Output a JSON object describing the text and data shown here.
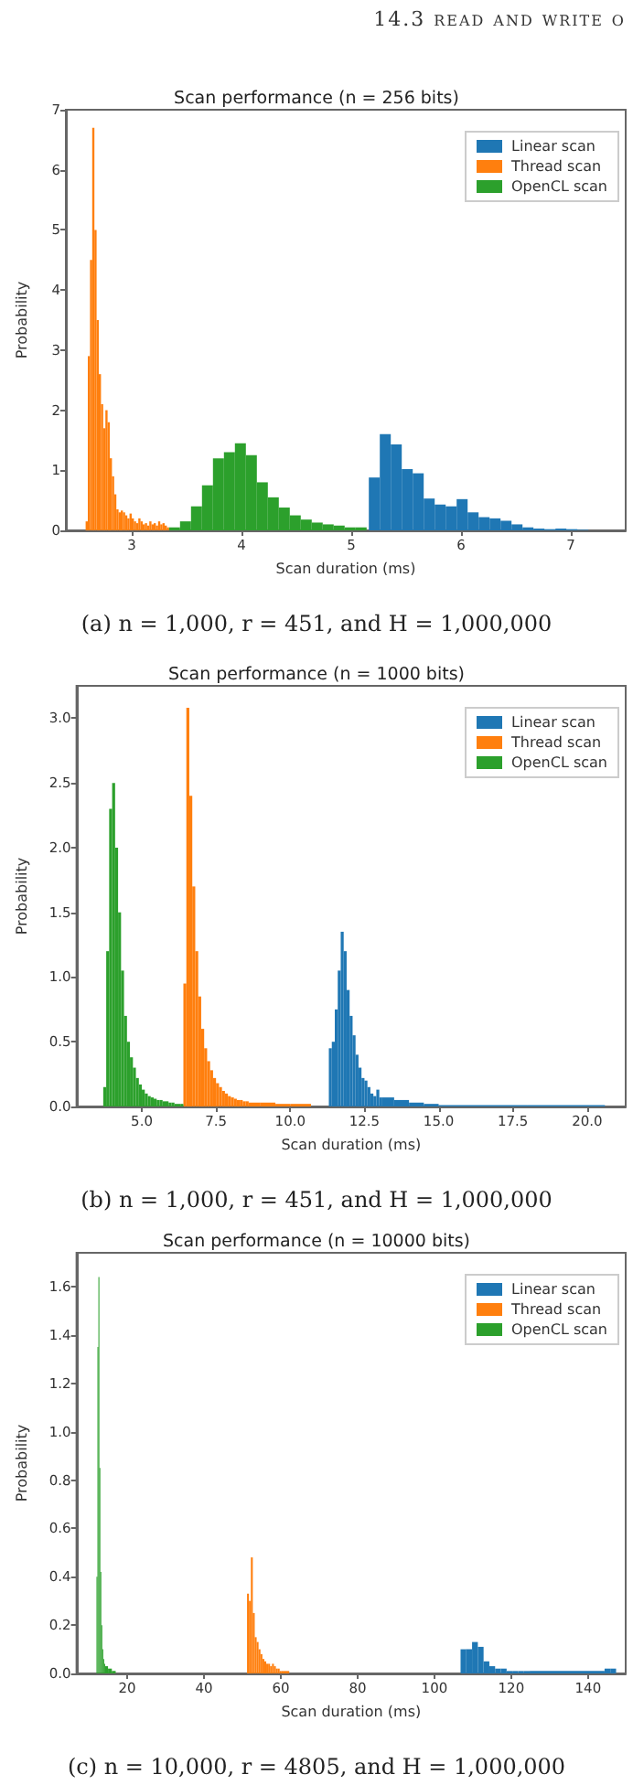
{
  "chart_data": [
    {
      "type": "histogram",
      "title": "Scan performance (n = 256 bits)",
      "xlabel": "Scan duration (ms)",
      "ylabel": "Probability",
      "annotations": [
        "14.3 read and write o",
        "(a) n = 1,000, r = 451, and H = 1,000,000"
      ],
      "xlim": [
        2.4,
        7.5
      ],
      "xticks": [
        3,
        4,
        5,
        6,
        7
      ],
      "ylim": [
        0,
        7
      ],
      "yticks": [
        0,
        1,
        2,
        3,
        4,
        5,
        6,
        7
      ],
      "grid": false,
      "legend": "top right",
      "bins": [
        2.58,
        2.6,
        2.62,
        2.64,
        2.66,
        2.68,
        2.7,
        2.72,
        2.74,
        2.76,
        2.78,
        2.8,
        2.82,
        2.84,
        2.86,
        2.88,
        2.9,
        2.92,
        2.94,
        2.96,
        2.98,
        3.0,
        3.02,
        3.04,
        3.06,
        3.08,
        3.1,
        3.12,
        3.14,
        3.16,
        3.18,
        3.2,
        3.22,
        3.24,
        3.26,
        3.28,
        3.3,
        3.32,
        3.34,
        3.44,
        3.54,
        3.64,
        3.74,
        3.84,
        3.94,
        4.04,
        4.14,
        4.24,
        4.34,
        4.44,
        4.54,
        4.64,
        4.74,
        4.84,
        4.94,
        5.04,
        5.14,
        5.16,
        5.26,
        5.36,
        5.46,
        5.56,
        5.66,
        5.76,
        5.86,
        5.96,
        6.06,
        6.16,
        6.26,
        6.36,
        6.46,
        6.56,
        6.66,
        6.76,
        6.86,
        6.96,
        7.06,
        7.16
      ],
      "series": [
        {
          "name": "Linear scan",
          "color": "#1f77b4",
          "values": [
            null,
            null,
            null,
            null,
            null,
            null,
            null,
            null,
            null,
            null,
            null,
            null,
            null,
            null,
            null,
            null,
            null,
            null,
            null,
            null,
            null,
            null,
            null,
            null,
            null,
            null,
            null,
            null,
            null,
            null,
            null,
            null,
            null,
            null,
            null,
            null,
            null,
            null,
            null,
            null,
            null,
            null,
            null,
            null,
            null,
            null,
            null,
            null,
            null,
            null,
            null,
            null,
            null,
            null,
            null,
            null,
            null,
            0.88,
            1.6,
            1.43,
            1.02,
            0.95,
            0.53,
            0.43,
            0.4,
            0.52,
            0.3,
            0.22,
            0.2,
            0.16,
            0.1,
            0.05,
            0.03,
            0.02,
            0.03,
            0.02,
            0.01
          ]
        },
        {
          "name": "Thread scan",
          "color": "#ff7f0e",
          "values": [
            0.15,
            2.9,
            4.5,
            6.7,
            5.0,
            3.5,
            2.6,
            2.1,
            1.7,
            2.0,
            1.8,
            1.2,
            0.9,
            0.6,
            0.35,
            0.3,
            0.33,
            0.3,
            0.25,
            0.2,
            0.28,
            0.2,
            0.15,
            0.12,
            0.2,
            0.15,
            0.1,
            0.12,
            0.08,
            0.15,
            0.1,
            0.12,
            0.08,
            0.15,
            0.1,
            0.12,
            0.08,
            0.05,
            null,
            null,
            null,
            null,
            null,
            null,
            null,
            null,
            null,
            null,
            null,
            null,
            null,
            null,
            null,
            null,
            null,
            null,
            null,
            null,
            null,
            null,
            null,
            null,
            null,
            null,
            null,
            null,
            null,
            null,
            null,
            null,
            null,
            null,
            null,
            null,
            null,
            null,
            null
          ]
        },
        {
          "name": "OpenCL scan",
          "color": "#2ca02c",
          "values": [
            null,
            null,
            null,
            null,
            null,
            null,
            null,
            null,
            null,
            null,
            null,
            null,
            null,
            null,
            null,
            null,
            null,
            null,
            null,
            null,
            null,
            null,
            null,
            null,
            null,
            null,
            null,
            null,
            null,
            null,
            null,
            null,
            null,
            null,
            null,
            null,
            null,
            null,
            0.05,
            0.15,
            0.4,
            0.75,
            1.2,
            1.3,
            1.45,
            1.25,
            0.8,
            0.55,
            0.38,
            0.25,
            0.18,
            0.13,
            0.1,
            0.08,
            0.05,
            0.05,
            null,
            null,
            null,
            null,
            null,
            null,
            null,
            null,
            null,
            null,
            null,
            null,
            null,
            null,
            null,
            null,
            null,
            null,
            null,
            null,
            null
          ]
        }
      ]
    },
    {
      "type": "histogram",
      "title": "Scan performance (n = 1000 bits)",
      "xlabel": "Scan duration (ms)",
      "ylabel": "Probability",
      "annotations": [
        "(b) n = 1,000, r = 451, and H = 1,000,000"
      ],
      "xlim": [
        2.8,
        21.3
      ],
      "xticks": [
        {
          "value": 5,
          "label": "5.0"
        },
        {
          "value": 7.5,
          "label": "7.5"
        },
        {
          "value": 10,
          "label": "10.0"
        },
        {
          "value": 12.5,
          "label": "12.5"
        },
        {
          "value": 15,
          "label": "15.0"
        },
        {
          "value": 17.5,
          "label": "17.5"
        },
        {
          "value": 20,
          "label": "20.0"
        }
      ],
      "ylim": [
        0,
        3.25
      ],
      "yticks": [
        {
          "value": 0,
          "label": "0.0"
        },
        {
          "value": 0.5,
          "label": "0.5"
        },
        {
          "value": 1,
          "label": "1.0"
        },
        {
          "value": 1.5,
          "label": "1.5"
        },
        {
          "value": 2,
          "label": "2.0"
        },
        {
          "value": 2.5,
          "label": "2.5"
        },
        {
          "value": 3,
          "label": "3.0"
        }
      ],
      "grid": false,
      "legend": "top right",
      "bins": [
        3.7,
        3.8,
        3.9,
        4.0,
        4.1,
        4.2,
        4.3,
        4.4,
        4.5,
        4.6,
        4.7,
        4.8,
        4.9,
        5.0,
        5.1,
        5.2,
        5.3,
        5.4,
        5.5,
        5.6,
        5.7,
        5.8,
        5.9,
        6.0,
        6.1,
        6.2,
        6.3,
        6.4,
        6.5,
        6.6,
        6.7,
        6.8,
        6.9,
        7.0,
        7.1,
        7.2,
        7.3,
        7.4,
        7.5,
        7.6,
        7.7,
        7.8,
        7.9,
        8.0,
        8.1,
        8.2,
        8.3,
        8.4,
        8.5,
        8.6,
        9.0,
        9.5,
        10.0,
        10.7,
        11.3,
        11.4,
        11.5,
        11.6,
        11.7,
        11.8,
        11.9,
        12.0,
        12.1,
        12.2,
        12.3,
        12.4,
        12.5,
        12.6,
        12.7,
        12.8,
        12.9,
        13.0,
        13.1,
        13.5,
        14.0,
        14.5,
        15.0,
        16.0,
        18.0,
        20.6
      ],
      "series": [
        {
          "name": "Linear scan",
          "color": "#1f77b4",
          "values": [
            null,
            null,
            null,
            null,
            null,
            null,
            null,
            null,
            null,
            null,
            null,
            null,
            null,
            null,
            null,
            null,
            null,
            null,
            null,
            null,
            null,
            null,
            null,
            null,
            null,
            null,
            null,
            null,
            null,
            null,
            null,
            null,
            null,
            null,
            null,
            null,
            null,
            null,
            null,
            null,
            null,
            null,
            null,
            null,
            null,
            null,
            null,
            null,
            null,
            null,
            null,
            null,
            null,
            null,
            0.45,
            0.5,
            0.75,
            1.05,
            1.35,
            1.2,
            0.9,
            0.7,
            0.55,
            0.4,
            0.3,
            0.22,
            0.2,
            0.15,
            0.1,
            0.08,
            0.13,
            0.07,
            0.07,
            0.05,
            0.03,
            0.02,
            0.01,
            0.01,
            0.01
          ]
        },
        {
          "name": "Thread scan",
          "color": "#ff7f0e",
          "values": [
            null,
            null,
            null,
            null,
            null,
            null,
            null,
            null,
            null,
            null,
            null,
            null,
            null,
            null,
            null,
            null,
            null,
            null,
            null,
            null,
            null,
            null,
            null,
            null,
            null,
            null,
            null,
            0.95,
            3.08,
            2.4,
            1.7,
            1.2,
            0.85,
            0.6,
            0.45,
            0.35,
            0.28,
            0.22,
            0.18,
            0.15,
            0.12,
            0.1,
            0.08,
            0.07,
            0.06,
            0.05,
            0.05,
            0.04,
            0.04,
            0.03,
            0.03,
            0.02,
            0.02,
            null,
            null,
            null,
            null,
            null,
            null,
            null,
            null,
            null,
            null,
            null,
            null,
            null,
            null,
            null,
            null,
            null,
            null,
            null,
            null,
            null,
            null,
            null,
            null,
            null,
            null
          ]
        },
        {
          "name": "OpenCL scan",
          "color": "#2ca02c",
          "values": [
            0.15,
            1.2,
            2.3,
            2.5,
            2.0,
            1.5,
            1.05,
            0.7,
            0.5,
            0.38,
            0.3,
            0.22,
            0.17,
            0.13,
            0.1,
            0.08,
            0.07,
            0.06,
            0.05,
            0.05,
            0.04,
            0.04,
            0.03,
            0.03,
            0.02,
            0.02,
            0.02,
            null,
            null,
            null,
            null,
            null,
            null,
            null,
            null,
            null,
            null,
            null,
            null,
            null,
            null,
            null,
            null,
            null,
            null,
            null,
            null,
            null,
            null,
            null,
            null,
            null,
            null,
            null,
            null,
            null,
            null,
            null,
            null,
            null,
            null,
            null,
            null,
            null,
            null,
            null,
            null,
            null,
            null,
            null,
            null,
            null,
            null,
            null,
            null,
            null,
            null,
            null,
            null
          ]
        }
      ]
    },
    {
      "type": "histogram",
      "title": "Scan performance (n = 10000 bits)",
      "xlabel": "Scan duration (ms)",
      "ylabel": "Probability",
      "annotations": [
        "(c) n = 10,000, r = 4805, and H = 1,000,000"
      ],
      "xlim": [
        6.8,
        149.8
      ],
      "xticks": [
        20,
        40,
        60,
        80,
        100,
        120,
        140
      ],
      "ylim": [
        0,
        1.74
      ],
      "yticks": [
        {
          "value": 0,
          "label": "0.0"
        },
        {
          "value": 0.2,
          "label": "0.2"
        },
        {
          "value": 0.4,
          "label": "0.4"
        },
        {
          "value": 0.6,
          "label": "0.6"
        },
        {
          "value": 0.8,
          "label": "0.8"
        },
        {
          "value": 1,
          "label": "1.0"
        },
        {
          "value": 1.2,
          "label": "1.2"
        },
        {
          "value": 1.4,
          "label": "1.4"
        },
        {
          "value": 1.6,
          "label": "1.6"
        }
      ],
      "grid": false,
      "legend": "top right",
      "bins": [
        12.0,
        12.25,
        12.5,
        12.75,
        13.0,
        13.25,
        13.5,
        13.75,
        14.0,
        14.25,
        15.0,
        16.0,
        17.0,
        51.2,
        51.7,
        52.2,
        52.7,
        53.2,
        53.7,
        54.2,
        54.7,
        55.2,
        55.7,
        56.2,
        56.7,
        57.2,
        57.7,
        58.2,
        58.7,
        59.2,
        59.7,
        60.2,
        60.7,
        62.2,
        106.8,
        108.3,
        109.8,
        111.3,
        112.8,
        114.3,
        115.8,
        117.3,
        118.8,
        120.3,
        121.8,
        123.3,
        124.8,
        144.3,
        145.8,
        147.3
      ],
      "series": [
        {
          "name": "Linear scan",
          "color": "#1f77b4",
          "values": [
            null,
            null,
            null,
            null,
            null,
            null,
            null,
            null,
            null,
            null,
            null,
            null,
            null,
            null,
            null,
            null,
            null,
            null,
            null,
            null,
            null,
            null,
            null,
            null,
            null,
            null,
            null,
            null,
            null,
            null,
            null,
            null,
            null,
            null,
            0.1,
            0.1,
            0.13,
            0.11,
            0.05,
            0.03,
            0.02,
            0.02,
            0.01,
            0.01,
            0.01,
            0.01,
            0.01,
            0.02,
            0.02
          ]
        },
        {
          "name": "Thread scan",
          "color": "#ff7f0e",
          "values": [
            null,
            null,
            null,
            null,
            null,
            null,
            null,
            null,
            null,
            null,
            null,
            null,
            null,
            0.33,
            0.3,
            0.48,
            0.25,
            0.15,
            0.13,
            0.1,
            0.08,
            0.06,
            0.05,
            0.04,
            0.04,
            0.03,
            0.04,
            0.03,
            0.02,
            0.02,
            0.01,
            0.01,
            0.01,
            null,
            null,
            null,
            null,
            null,
            null,
            null,
            null,
            null,
            null,
            null,
            null,
            null,
            null,
            null,
            null
          ]
        },
        {
          "name": "OpenCL scan",
          "color": "#2ca02c",
          "values": [
            0.4,
            1.35,
            1.64,
            0.85,
            0.42,
            0.2,
            0.1,
            0.06,
            0.04,
            0.03,
            0.02,
            0.01,
            null,
            null,
            null,
            null,
            null,
            null,
            null,
            null,
            null,
            null,
            null,
            null,
            null,
            null,
            null,
            null,
            null,
            null,
            null,
            null,
            null,
            null,
            null,
            null,
            null,
            null,
            null,
            null,
            null,
            null,
            null,
            null,
            null,
            null,
            null,
            null,
            null
          ]
        }
      ]
    }
  ]
}
